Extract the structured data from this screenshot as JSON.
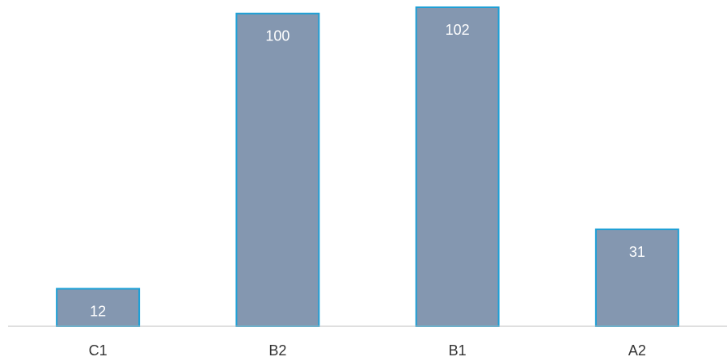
{
  "chart_data": {
    "type": "bar",
    "categories": [
      "C1",
      "B2",
      "B1",
      "A2"
    ],
    "values": [
      12,
      100,
      102,
      31
    ],
    "title": "",
    "xlabel": "",
    "ylabel": "",
    "ylim": [
      0,
      102
    ],
    "grid": false,
    "legend": "none",
    "data_labels": [
      "12",
      "100",
      "102",
      "31"
    ]
  },
  "colors": {
    "bar_fill": "#8497b0",
    "bar_stroke": "#1ea0d6",
    "axis": "#bfbfbf"
  }
}
